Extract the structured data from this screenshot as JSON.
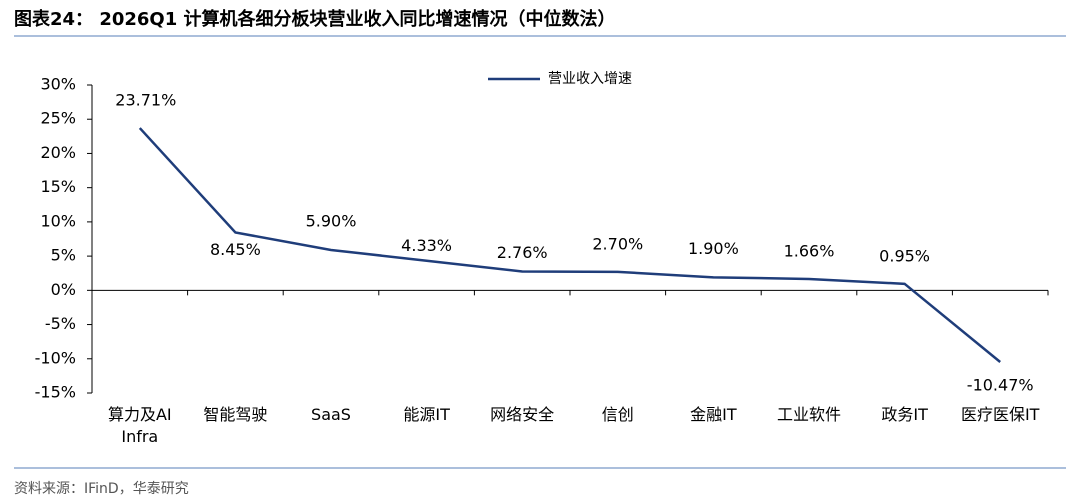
{
  "title": "图表24：  2026Q1 计算机各细分板块营业收入同比增速情况（中位数法）",
  "source": "资料来源：IFinD，华泰研究",
  "chart_data": {
    "type": "line",
    "categories": [
      "算力及AI Infra",
      "智能驾驶",
      "SaaS",
      "能源IT",
      "网络安全",
      "信创",
      "金融IT",
      "工业软件",
      "政务IT",
      "医疗医保IT"
    ],
    "series": [
      {
        "name": "营业收入增速",
        "color": "#1f3d7a",
        "values": [
          23.71,
          8.45,
          5.9,
          4.33,
          2.76,
          2.7,
          1.9,
          1.66,
          0.95,
          -10.47
        ],
        "value_labels": [
          "23.71%",
          "8.45%",
          "5.90%",
          "4.33%",
          "2.76%",
          "2.70%",
          "1.90%",
          "1.66%",
          "0.95%",
          "-10.47%"
        ]
      }
    ],
    "ylim": [
      -15,
      30
    ],
    "yticks": [
      {
        "value": -15,
        "label": "-15%"
      },
      {
        "value": -10,
        "label": "-10%"
      },
      {
        "value": -5,
        "label": "-5%"
      },
      {
        "value": 0,
        "label": "0%"
      },
      {
        "value": 5,
        "label": "5%"
      },
      {
        "value": 10,
        "label": "10%"
      },
      {
        "value": 15,
        "label": "15%"
      },
      {
        "value": 20,
        "label": "20%"
      },
      {
        "value": 25,
        "label": "25%"
      },
      {
        "value": 30,
        "label": "30%"
      }
    ],
    "grid": false
  }
}
